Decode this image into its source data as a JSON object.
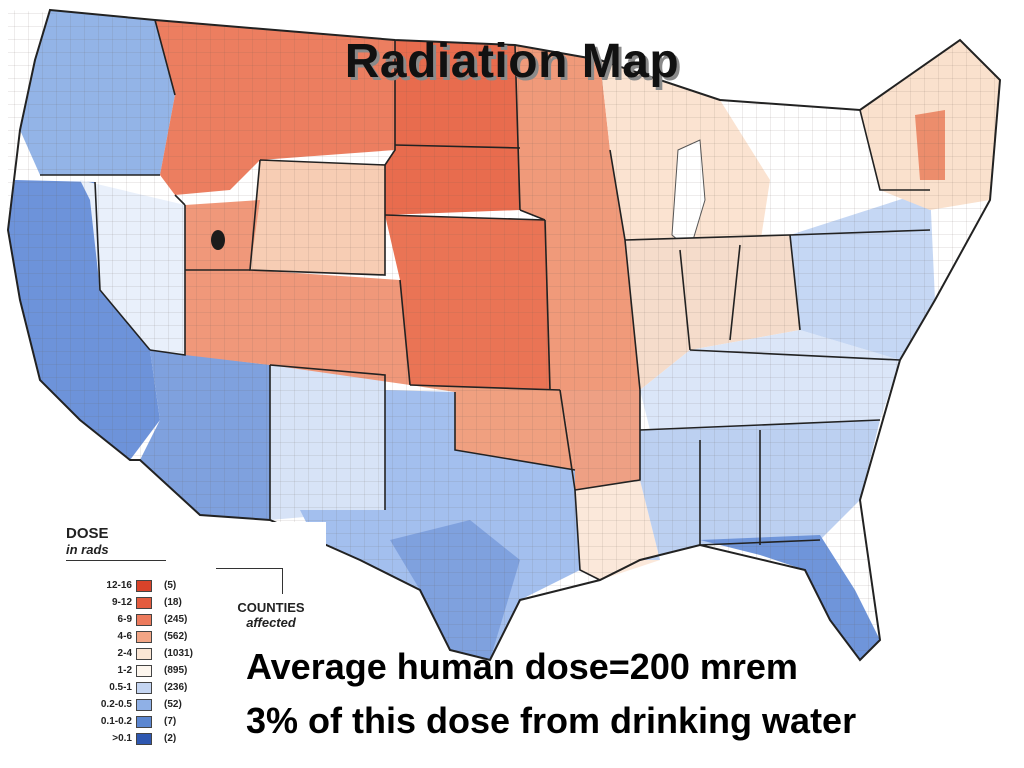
{
  "title": "Radiation Map",
  "legend": {
    "heading": "DOSE",
    "subheading": "in rads",
    "counties_label": "COUNTIES",
    "counties_sub": "affected",
    "rows": [
      {
        "range": "12-16",
        "count": "(5)",
        "color": "#d9432a"
      },
      {
        "range": "9-12",
        "count": "(18)",
        "color": "#e35b3e"
      },
      {
        "range": "6-9",
        "count": "(245)",
        "color": "#ec7a5c"
      },
      {
        "range": "4-6",
        "count": "(562)",
        "color": "#f2a585"
      },
      {
        "range": "2-4",
        "count": "(1031)",
        "color": "#fbe6d4"
      },
      {
        "range": "1-2",
        "count": "(895)",
        "color": "#fdf6ee"
      },
      {
        "range": "0.5-1",
        "count": "(236)",
        "color": "#c4d5f2"
      },
      {
        "range": "0.2-0.5",
        "count": "(52)",
        "color": "#8fb0e6"
      },
      {
        "range": "0.1-0.2",
        "count": "(7)",
        "color": "#5b86d0"
      },
      {
        "range": ">0.1",
        "count": "(2)",
        "color": "#2e57b0"
      }
    ]
  },
  "captions": {
    "line1": "Average human dose=200 mrem",
    "line2": "3% of this dose from drinking water"
  }
}
